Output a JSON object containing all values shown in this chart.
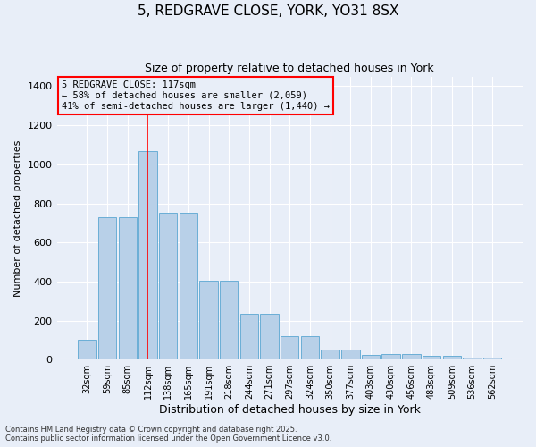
{
  "title1": "5, REDGRAVE CLOSE, YORK, YO31 8SX",
  "title2": "Size of property relative to detached houses in York",
  "xlabel": "Distribution of detached houses by size in York",
  "ylabel": "Number of detached properties",
  "categories": [
    "32sqm",
    "59sqm",
    "85sqm",
    "112sqm",
    "138sqm",
    "165sqm",
    "191sqm",
    "218sqm",
    "244sqm",
    "271sqm",
    "297sqm",
    "324sqm",
    "350sqm",
    "377sqm",
    "403sqm",
    "430sqm",
    "456sqm",
    "483sqm",
    "509sqm",
    "536sqm",
    "562sqm"
  ],
  "values": [
    100,
    730,
    730,
    1070,
    750,
    750,
    405,
    405,
    235,
    235,
    120,
    120,
    50,
    50,
    25,
    30,
    30,
    20,
    20,
    10,
    10
  ],
  "bar_color": "#b8d0e8",
  "bar_edgecolor": "#6aaed6",
  "bg_color": "#e8eef8",
  "grid_color": "#ffffff",
  "vline_x": 3.0,
  "vline_color": "red",
  "annotation_title": "5 REDGRAVE CLOSE: 117sqm",
  "annotation_line1": "← 58% of detached houses are smaller (2,059)",
  "annotation_line2": "41% of semi-detached houses are larger (1,440) →",
  "footer1": "Contains HM Land Registry data © Crown copyright and database right 2025.",
  "footer2": "Contains public sector information licensed under the Open Government Licence v3.0.",
  "ylim": [
    0,
    1450
  ],
  "yticks": [
    0,
    200,
    400,
    600,
    800,
    1000,
    1200,
    1400
  ]
}
